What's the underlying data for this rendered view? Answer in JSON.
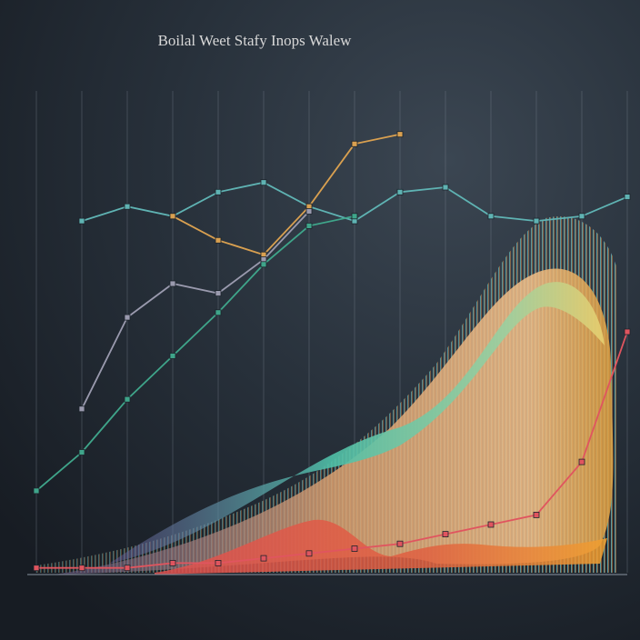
{
  "chart_data": {
    "type": "line",
    "title": "Boilal Weet Stafy Inops Walew",
    "categories": [
      null,
      null,
      null,
      null,
      null,
      null,
      null,
      null,
      null,
      null,
      null,
      null,
      null,
      null
    ],
    "ylim": [
      0,
      100
    ],
    "grid": true,
    "series": [
      {
        "name": null,
        "color": "#5fb3b3",
        "values": [
          null,
          73,
          76,
          74,
          79,
          81,
          76,
          73,
          79,
          80,
          74,
          73,
          74,
          78
        ]
      },
      {
        "name": null,
        "color": "#d9a050",
        "values": [
          null,
          null,
          null,
          74,
          69,
          66,
          76,
          89,
          91,
          null,
          null,
          null,
          null,
          null
        ]
      },
      {
        "name": null,
        "color": "#9a9aae",
        "values": [
          null,
          34,
          53,
          60,
          58,
          65,
          75,
          null,
          null,
          null,
          null,
          null,
          null,
          null
        ]
      },
      {
        "name": null,
        "color": "#3fa58a",
        "values": [
          17,
          25,
          36,
          45,
          54,
          64,
          72,
          74,
          null,
          null,
          null,
          null,
          null,
          null
        ]
      },
      {
        "name": null,
        "color": "#e0555f",
        "values": [
          1,
          1,
          1,
          2,
          2,
          3,
          4,
          5,
          6,
          8,
          10,
          12,
          23,
          50
        ]
      }
    ]
  }
}
